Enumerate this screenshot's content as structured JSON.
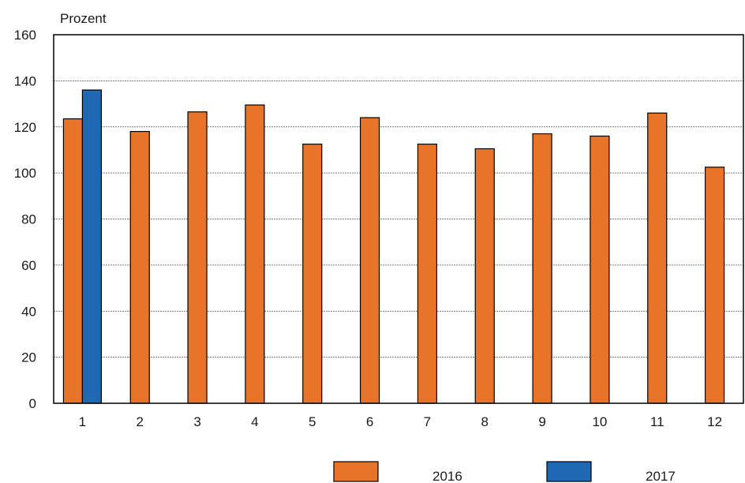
{
  "chart_data": {
    "type": "bar",
    "ylabel": "Prozent",
    "ylim": [
      0,
      160
    ],
    "yticks": [
      0,
      20,
      40,
      60,
      80,
      100,
      120,
      140,
      160
    ],
    "categories": [
      "1",
      "2",
      "3",
      "4",
      "5",
      "6",
      "7",
      "8",
      "9",
      "10",
      "11",
      "12"
    ],
    "series": [
      {
        "name": "2016",
        "color": "#e8742a",
        "values": [
          123.5,
          118,
          126.5,
          129.5,
          112.5,
          124,
          112.5,
          110.5,
          117,
          116,
          126,
          102.5
        ]
      },
      {
        "name": "2017",
        "color": "#2067b4",
        "values": [
          136,
          null,
          null,
          null,
          null,
          null,
          null,
          null,
          null,
          null,
          null,
          null
        ]
      }
    ],
    "grid": true,
    "legend_position": "bottom"
  }
}
